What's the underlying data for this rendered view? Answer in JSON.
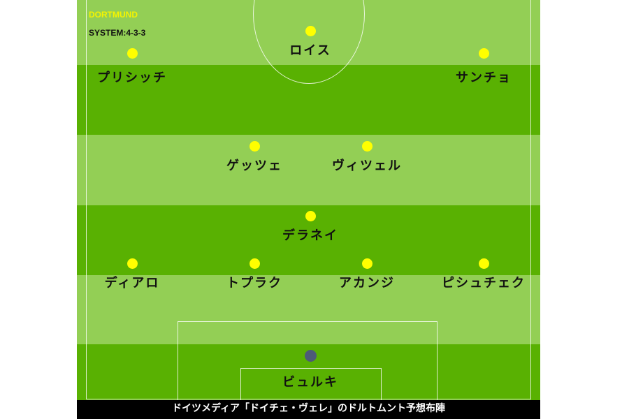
{
  "team": "DORTMUND",
  "system": "SYSTEM:4-3-3",
  "caption": "ドイツメディア「ドイチェ・ヴェレ」のドルトムント予想布陣",
  "colors": {
    "pitch_light": "#93cf55",
    "pitch_dark": "#59b102",
    "player_dot": "#ffff00",
    "goalkeeper_dot": "#4d5a78"
  },
  "players": [
    {
      "name": "ロイス",
      "role": "forward"
    },
    {
      "name": "プリシッチ",
      "role": "forward"
    },
    {
      "name": "サンチョ",
      "role": "forward"
    },
    {
      "name": "ゲッツェ",
      "role": "midfielder"
    },
    {
      "name": "ヴィツェル",
      "role": "midfielder"
    },
    {
      "name": "デラネイ",
      "role": "midfielder"
    },
    {
      "name": "ディアロ",
      "role": "defender"
    },
    {
      "name": "トプラク",
      "role": "defender"
    },
    {
      "name": "アカンジ",
      "role": "defender"
    },
    {
      "name": "ピシュチェク",
      "role": "defender"
    },
    {
      "name": "ビュルキ",
      "role": "goalkeeper"
    }
  ]
}
